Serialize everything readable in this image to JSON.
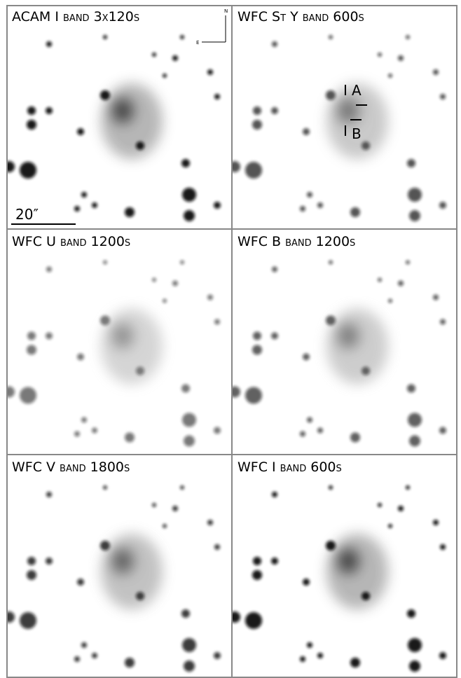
{
  "panels": [
    {
      "label": "ACAM  I band 3x120s"
    },
    {
      "label": "WFC  St Y band 600s"
    },
    {
      "label": "WFC  U band 1200s"
    },
    {
      "label": "WFC  B band 1200s"
    },
    {
      "label": "WFC  V band 1800s"
    },
    {
      "label": "WFC  I band 600s"
    }
  ],
  "compass": {
    "north": "N",
    "east": "E"
  },
  "scale_bar": "20″",
  "annotations": [
    "A",
    "B"
  ]
}
